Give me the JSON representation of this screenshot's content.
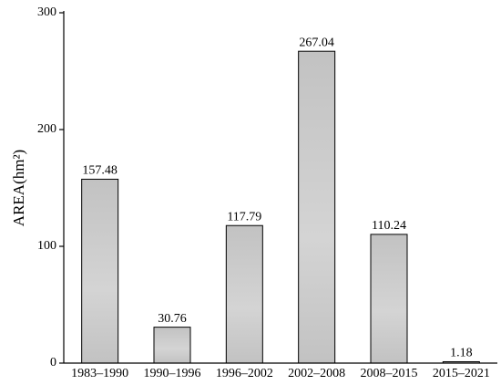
{
  "chart_data": {
    "type": "bar",
    "y_label": "AREA(hm²)",
    "categories": [
      "1983–1990",
      "1990–1996",
      "1996–2002",
      "2002–2008",
      "2008–2015",
      "2015–2021"
    ],
    "values": [
      157.48,
      30.76,
      117.79,
      267.04,
      110.24,
      1.18
    ],
    "color": "#c8c8c8",
    "ylim": [
      0,
      300
    ],
    "yticks": [
      0,
      100,
      200,
      300
    ],
    "grid": false
  }
}
